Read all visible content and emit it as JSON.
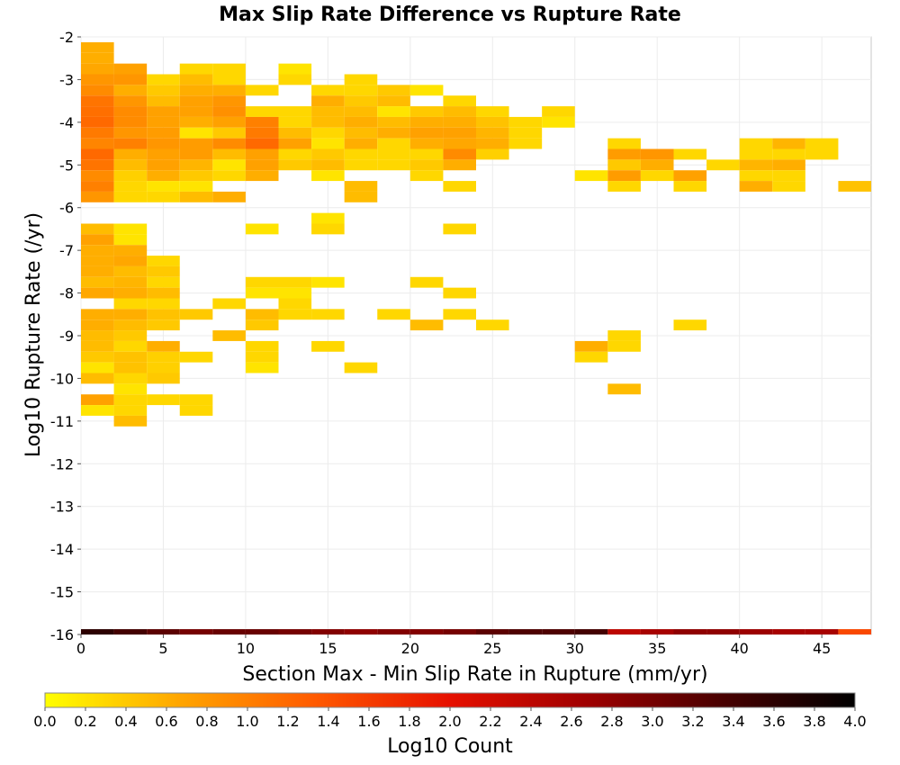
{
  "chart_data": {
    "type": "heatmap",
    "title": "Max Slip Rate Difference vs Rupture Rate",
    "xlabel": "Section Max - Min Slip Rate in Rupture (mm/yr)",
    "ylabel": "Log10 Rupture Rate (/yr)",
    "colorbar_label": "Log10 Count",
    "xlim": [
      0,
      48
    ],
    "ylim": [
      -16,
      -2
    ],
    "x_ticks": [
      "0",
      "5",
      "10",
      "15",
      "20",
      "25",
      "30",
      "35",
      "40",
      "45"
    ],
    "y_ticks": [
      "-2",
      "-3",
      "-4",
      "-5",
      "-6",
      "-7",
      "-8",
      "-9",
      "-10",
      "-11",
      "-12",
      "-13",
      "-14",
      "-15",
      "-16"
    ],
    "colorbar_ticks": [
      "0.0",
      "0.2",
      "0.4",
      "0.6",
      "0.8",
      "1.0",
      "1.2",
      "1.4",
      "1.6",
      "1.8",
      "2.0",
      "2.2",
      "2.4",
      "2.6",
      "2.8",
      "3.0",
      "3.2",
      "3.4",
      "3.6",
      "3.8",
      "4.0"
    ],
    "colorbar_range": [
      0,
      4
    ],
    "grid": true,
    "colormap": [
      "#ffff00",
      "#ffa500",
      "#ff5a00",
      "#e61000",
      "#a00000",
      "#4a0000",
      "#000000"
    ],
    "bin_width": 2,
    "bin_height": 0.25,
    "cells": [
      [
        0,
        -2.25,
        0.6
      ],
      [
        0,
        -2.5,
        0.6
      ],
      [
        0,
        -2.75,
        0.65
      ],
      [
        0,
        -3.0,
        0.8
      ],
      [
        0,
        -3.25,
        0.9
      ],
      [
        0,
        -3.5,
        1.1
      ],
      [
        0,
        -3.75,
        1.15
      ],
      [
        0,
        -4.0,
        1.2
      ],
      [
        0,
        -4.25,
        1.05
      ],
      [
        0,
        -4.5,
        0.95
      ],
      [
        0,
        -4.75,
        1.2
      ],
      [
        0,
        -5.0,
        1.1
      ],
      [
        0,
        -5.25,
        0.9
      ],
      [
        0,
        -5.5,
        1.0
      ],
      [
        0,
        -5.75,
        0.8
      ],
      [
        0,
        -6.5,
        0.5
      ],
      [
        0,
        -6.75,
        0.7
      ],
      [
        0,
        -7.0,
        0.6
      ],
      [
        0,
        -7.25,
        0.6
      ],
      [
        0,
        -7.5,
        0.6
      ],
      [
        0,
        -7.75,
        0.5
      ],
      [
        0,
        -8.0,
        0.65
      ],
      [
        0,
        -8.5,
        0.6
      ],
      [
        0,
        -8.75,
        0.6
      ],
      [
        0,
        -9.0,
        0.5
      ],
      [
        0,
        -9.25,
        0.5
      ],
      [
        0,
        -9.5,
        0.4
      ],
      [
        0,
        -9.75,
        0.2
      ],
      [
        0,
        -10.0,
        0.5
      ],
      [
        0,
        -10.5,
        0.7
      ],
      [
        0,
        -10.75,
        0.2
      ],
      [
        2,
        -2.75,
        0.7
      ],
      [
        2,
        -3.0,
        0.8
      ],
      [
        2,
        -3.25,
        0.6
      ],
      [
        2,
        -3.5,
        0.8
      ],
      [
        2,
        -3.75,
        0.9
      ],
      [
        2,
        -4.0,
        0.9
      ],
      [
        2,
        -4.25,
        0.8
      ],
      [
        2,
        -4.5,
        1.0
      ],
      [
        2,
        -4.75,
        0.6
      ],
      [
        2,
        -5.0,
        0.5
      ],
      [
        2,
        -5.25,
        0.35
      ],
      [
        2,
        -5.5,
        0.3
      ],
      [
        2,
        -5.75,
        0.3
      ],
      [
        2,
        -6.5,
        0.2
      ],
      [
        2,
        -6.75,
        0.2
      ],
      [
        2,
        -7.0,
        0.6
      ],
      [
        2,
        -7.25,
        0.65
      ],
      [
        2,
        -7.5,
        0.5
      ],
      [
        2,
        -7.75,
        0.55
      ],
      [
        2,
        -8.0,
        0.6
      ],
      [
        2,
        -8.25,
        0.3
      ],
      [
        2,
        -8.5,
        0.6
      ],
      [
        2,
        -8.75,
        0.5
      ],
      [
        2,
        -9.0,
        0.4
      ],
      [
        2,
        -9.25,
        0.3
      ],
      [
        2,
        -9.5,
        0.45
      ],
      [
        2,
        -9.75,
        0.45
      ],
      [
        2,
        -10.0,
        0.3
      ],
      [
        2,
        -10.25,
        0.2
      ],
      [
        2,
        -10.5,
        0.3
      ],
      [
        2,
        -10.75,
        0.3
      ],
      [
        2,
        -11.0,
        0.5
      ],
      [
        4,
        -3.0,
        0.3
      ],
      [
        4,
        -3.25,
        0.4
      ],
      [
        4,
        -3.5,
        0.5
      ],
      [
        4,
        -3.75,
        0.7
      ],
      [
        4,
        -4.0,
        0.7
      ],
      [
        4,
        -4.25,
        0.75
      ],
      [
        4,
        -4.5,
        0.8
      ],
      [
        4,
        -4.75,
        0.7
      ],
      [
        4,
        -5.0,
        0.7
      ],
      [
        4,
        -5.25,
        0.6
      ],
      [
        4,
        -5.5,
        0.2
      ],
      [
        4,
        -5.75,
        0.3
      ],
      [
        4,
        -7.25,
        0.3
      ],
      [
        4,
        -7.5,
        0.4
      ],
      [
        4,
        -7.75,
        0.3
      ],
      [
        4,
        -8.0,
        0.5
      ],
      [
        4,
        -8.25,
        0.3
      ],
      [
        4,
        -8.5,
        0.45
      ],
      [
        4,
        -8.75,
        0.4
      ],
      [
        4,
        -9.25,
        0.6
      ],
      [
        4,
        -9.5,
        0.35
      ],
      [
        4,
        -9.75,
        0.35
      ],
      [
        4,
        -10.0,
        0.4
      ],
      [
        4,
        -10.5,
        0.3
      ],
      [
        6,
        -2.75,
        0.3
      ],
      [
        6,
        -3.0,
        0.5
      ],
      [
        6,
        -3.25,
        0.6
      ],
      [
        6,
        -3.5,
        0.7
      ],
      [
        6,
        -3.75,
        0.7
      ],
      [
        6,
        -4.0,
        0.6
      ],
      [
        6,
        -4.25,
        0.2
      ],
      [
        6,
        -4.5,
        0.75
      ],
      [
        6,
        -4.75,
        0.75
      ],
      [
        6,
        -5.0,
        0.55
      ],
      [
        6,
        -5.25,
        0.4
      ],
      [
        6,
        -5.5,
        0.2
      ],
      [
        6,
        -5.75,
        0.5
      ],
      [
        6,
        -8.5,
        0.4
      ],
      [
        6,
        -9.5,
        0.3
      ],
      [
        6,
        -10.5,
        0.3
      ],
      [
        6,
        -10.75,
        0.3
      ],
      [
        8,
        -2.75,
        0.3
      ],
      [
        8,
        -3.0,
        0.3
      ],
      [
        8,
        -3.25,
        0.6
      ],
      [
        8,
        -3.5,
        0.8
      ],
      [
        8,
        -3.75,
        0.85
      ],
      [
        8,
        -4.0,
        0.7
      ],
      [
        8,
        -4.25,
        0.4
      ],
      [
        8,
        -4.5,
        0.9
      ],
      [
        8,
        -4.75,
        0.5
      ],
      [
        8,
        -5.0,
        0.2
      ],
      [
        8,
        -5.25,
        0.3
      ],
      [
        8,
        -5.75,
        0.6
      ],
      [
        8,
        -8.25,
        0.3
      ],
      [
        8,
        -9.0,
        0.5
      ],
      [
        10,
        -3.25,
        0.3
      ],
      [
        10,
        -3.75,
        0.3
      ],
      [
        10,
        -4.0,
        1.0
      ],
      [
        10,
        -4.25,
        1.05
      ],
      [
        10,
        -4.5,
        1.2
      ],
      [
        10,
        -4.75,
        0.7
      ],
      [
        10,
        -5.0,
        0.7
      ],
      [
        10,
        -5.25,
        0.6
      ],
      [
        10,
        -6.5,
        0.2
      ],
      [
        10,
        -7.75,
        0.3
      ],
      [
        10,
        -8.0,
        0.2
      ],
      [
        10,
        -8.5,
        0.5
      ],
      [
        10,
        -8.75,
        0.4
      ],
      [
        10,
        -9.25,
        0.3
      ],
      [
        10,
        -9.5,
        0.3
      ],
      [
        10,
        -9.75,
        0.2
      ],
      [
        12,
        -2.75,
        0.2
      ],
      [
        12,
        -3.0,
        0.3
      ],
      [
        12,
        -3.75,
        0.3
      ],
      [
        12,
        -4.0,
        0.3
      ],
      [
        12,
        -4.25,
        0.5
      ],
      [
        12,
        -4.5,
        0.7
      ],
      [
        12,
        -4.75,
        0.3
      ],
      [
        12,
        -5.0,
        0.4
      ],
      [
        12,
        -7.75,
        0.3
      ],
      [
        12,
        -8.0,
        0.2
      ],
      [
        12,
        -8.25,
        0.3
      ],
      [
        12,
        -8.5,
        0.3
      ],
      [
        14,
        -3.25,
        0.3
      ],
      [
        14,
        -3.5,
        0.6
      ],
      [
        14,
        -3.75,
        0.5
      ],
      [
        14,
        -4.0,
        0.5
      ],
      [
        14,
        -4.25,
        0.3
      ],
      [
        14,
        -4.5,
        0.2
      ],
      [
        14,
        -4.75,
        0.4
      ],
      [
        14,
        -5.0,
        0.5
      ],
      [
        14,
        -5.25,
        0.2
      ],
      [
        14,
        -6.25,
        0.2
      ],
      [
        14,
        -6.5,
        0.3
      ],
      [
        14,
        -7.75,
        0.2
      ],
      [
        14,
        -8.5,
        0.3
      ],
      [
        14,
        -9.25,
        0.3
      ],
      [
        16,
        -3.0,
        0.3
      ],
      [
        16,
        -3.25,
        0.3
      ],
      [
        16,
        -3.5,
        0.4
      ],
      [
        16,
        -3.75,
        0.5
      ],
      [
        16,
        -4.0,
        0.6
      ],
      [
        16,
        -4.25,
        0.5
      ],
      [
        16,
        -4.5,
        0.6
      ],
      [
        16,
        -4.75,
        0.3
      ],
      [
        16,
        -5.0,
        0.3
      ],
      [
        16,
        -5.5,
        0.5
      ],
      [
        16,
        -5.75,
        0.5
      ],
      [
        16,
        -9.75,
        0.3
      ],
      [
        18,
        -3.25,
        0.4
      ],
      [
        18,
        -3.5,
        0.5
      ],
      [
        18,
        -3.75,
        0.2
      ],
      [
        18,
        -4.0,
        0.5
      ],
      [
        18,
        -4.25,
        0.6
      ],
      [
        18,
        -4.5,
        0.3
      ],
      [
        18,
        -4.75,
        0.3
      ],
      [
        18,
        -5.0,
        0.3
      ],
      [
        18,
        -8.5,
        0.3
      ],
      [
        20,
        -3.25,
        0.2
      ],
      [
        20,
        -3.75,
        0.4
      ],
      [
        20,
        -4.0,
        0.6
      ],
      [
        20,
        -4.25,
        0.7
      ],
      [
        20,
        -4.5,
        0.6
      ],
      [
        20,
        -4.75,
        0.3
      ],
      [
        20,
        -5.0,
        0.4
      ],
      [
        20,
        -5.25,
        0.3
      ],
      [
        20,
        -7.75,
        0.3
      ],
      [
        20,
        -8.75,
        0.5
      ],
      [
        22,
        -3.5,
        0.3
      ],
      [
        22,
        -3.75,
        0.5
      ],
      [
        22,
        -4.0,
        0.6
      ],
      [
        22,
        -4.25,
        0.7
      ],
      [
        22,
        -4.5,
        0.65
      ],
      [
        22,
        -4.75,
        0.9
      ],
      [
        22,
        -5.0,
        0.6
      ],
      [
        22,
        -5.5,
        0.3
      ],
      [
        22,
        -6.5,
        0.3
      ],
      [
        22,
        -8.0,
        0.3
      ],
      [
        22,
        -8.5,
        0.3
      ],
      [
        24,
        -3.75,
        0.3
      ],
      [
        24,
        -4.0,
        0.45
      ],
      [
        24,
        -4.25,
        0.55
      ],
      [
        24,
        -4.5,
        0.6
      ],
      [
        24,
        -4.75,
        0.35
      ],
      [
        24,
        -8.75,
        0.3
      ],
      [
        26,
        -4.0,
        0.3
      ],
      [
        26,
        -4.25,
        0.3
      ],
      [
        26,
        -4.5,
        0.3
      ],
      [
        28,
        -3.75,
        0.3
      ],
      [
        28,
        -4.0,
        0.2
      ],
      [
        30,
        -5.25,
        0.2
      ],
      [
        30,
        -9.25,
        0.6
      ],
      [
        30,
        -9.5,
        0.3
      ],
      [
        32,
        -4.5,
        0.3
      ],
      [
        32,
        -4.75,
        0.75
      ],
      [
        32,
        -5.0,
        0.4
      ],
      [
        32,
        -5.25,
        0.75
      ],
      [
        32,
        -5.5,
        0.3
      ],
      [
        32,
        -9.0,
        0.3
      ],
      [
        32,
        -9.25,
        0.3
      ],
      [
        32,
        -10.25,
        0.5
      ],
      [
        34,
        -4.75,
        0.8
      ],
      [
        34,
        -5.0,
        0.6
      ],
      [
        34,
        -5.25,
        0.3
      ],
      [
        36,
        -4.75,
        0.3
      ],
      [
        36,
        -5.25,
        0.7
      ],
      [
        36,
        -5.5,
        0.3
      ],
      [
        36,
        -8.75,
        0.3
      ],
      [
        38,
        -5.0,
        0.3
      ],
      [
        40,
        -4.5,
        0.3
      ],
      [
        40,
        -4.75,
        0.3
      ],
      [
        40,
        -5.0,
        0.55
      ],
      [
        40,
        -5.25,
        0.3
      ],
      [
        40,
        -5.5,
        0.6
      ],
      [
        42,
        -4.5,
        0.55
      ],
      [
        42,
        -4.75,
        0.3
      ],
      [
        42,
        -5.0,
        0.6
      ],
      [
        42,
        -5.25,
        0.3
      ],
      [
        42,
        -5.5,
        0.3
      ],
      [
        44,
        -4.5,
        0.3
      ],
      [
        44,
        -4.75,
        0.3
      ],
      [
        46,
        -5.5,
        0.45
      ],
      [
        0,
        -16.0,
        3.6
      ],
      [
        2,
        -16.0,
        3.4
      ],
      [
        4,
        -16.0,
        3.2
      ],
      [
        6,
        -16.0,
        3.0
      ],
      [
        8,
        -16.0,
        3.1
      ],
      [
        10,
        -16.0,
        3.1
      ],
      [
        12,
        -16.0,
        3.0
      ],
      [
        14,
        -16.0,
        2.9
      ],
      [
        16,
        -16.0,
        2.8
      ],
      [
        18,
        -16.0,
        2.9
      ],
      [
        20,
        -16.0,
        2.9
      ],
      [
        22,
        -16.0,
        3.0
      ],
      [
        24,
        -16.0,
        3.2
      ],
      [
        26,
        -16.0,
        3.3
      ],
      [
        28,
        -16.0,
        3.3
      ],
      [
        30,
        -16.0,
        3.4
      ],
      [
        32,
        -16.0,
        2.4
      ],
      [
        34,
        -16.0,
        2.6
      ],
      [
        36,
        -16.0,
        2.8
      ],
      [
        38,
        -16.0,
        2.8
      ],
      [
        40,
        -16.0,
        2.7
      ],
      [
        42,
        -16.0,
        2.6
      ],
      [
        44,
        -16.0,
        2.6
      ],
      [
        46,
        -16.0,
        1.5
      ]
    ]
  }
}
